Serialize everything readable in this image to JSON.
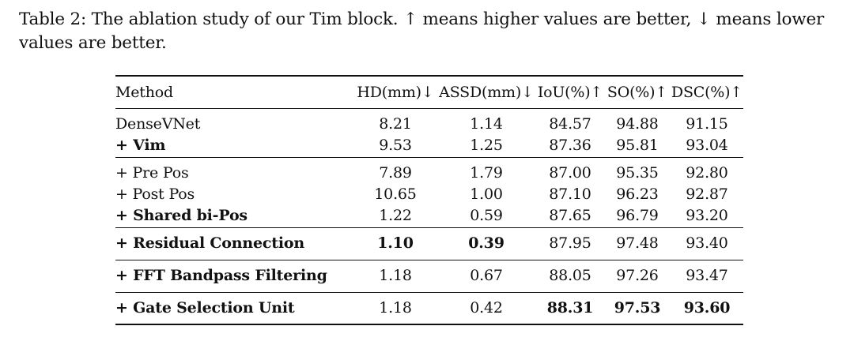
{
  "caption": {
    "text": "Table 2: The ablation study of our Tim block. ↑ means higher values are better, ↓ means lower values are better."
  },
  "table": {
    "headers": [
      "Method",
      "HD(mm)↓",
      "ASSD(mm)↓",
      "IoU(%)↑",
      "SO(%)↑",
      "DSC(%)↑"
    ],
    "rows": [
      {
        "method": "DenseVNet",
        "hd": "8.21",
        "assd": "1.14",
        "iou": "84.57",
        "so": "94.88",
        "dsc": "91.15"
      },
      {
        "method": "+ Vim",
        "hd": "9.53",
        "assd": "1.25",
        "iou": "87.36",
        "so": "95.81",
        "dsc": "93.04"
      },
      {
        "method": "+ Pre Pos",
        "hd": "7.89",
        "assd": "1.79",
        "iou": "87.00",
        "so": "95.35",
        "dsc": "92.80"
      },
      {
        "method": "+ Post Pos",
        "hd": "10.65",
        "assd": "1.00",
        "iou": "87.10",
        "so": "96.23",
        "dsc": "92.87"
      },
      {
        "method": "+ Shared bi-Pos",
        "hd": "1.22",
        "assd": "0.59",
        "iou": "87.65",
        "so": "96.79",
        "dsc": "93.20"
      },
      {
        "method": "+ Residual Connection",
        "hd": "1.10",
        "assd": "0.39",
        "iou": "87.95",
        "so": "97.48",
        "dsc": "93.40"
      },
      {
        "method": "+ FFT Bandpass Filtering",
        "hd": "1.18",
        "assd": "0.67",
        "iou": "88.05",
        "so": "97.26",
        "dsc": "93.47"
      },
      {
        "method": "+ Gate Selection Unit",
        "hd": "1.18",
        "assd": "0.42",
        "iou": "88.31",
        "so": "97.53",
        "dsc": "93.60"
      }
    ]
  }
}
